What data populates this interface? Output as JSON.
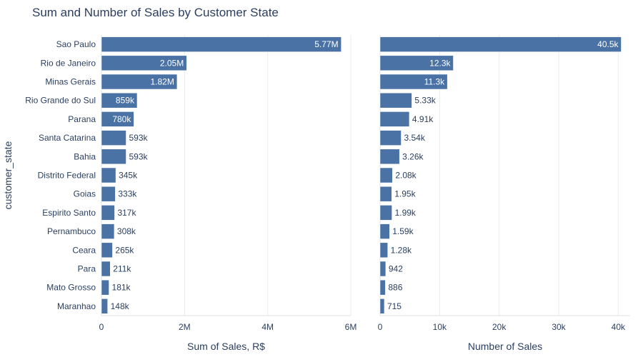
{
  "chart_data": {
    "type": "bar",
    "orientation": "horizontal",
    "title": "Sum and Number of Sales by Customer State",
    "ylabel": "customer_state",
    "bar_color": "#4a72a5",
    "grid_color": "#e8ebf0",
    "text_color": "#2a3f5f",
    "categories": [
      "Sao Paulo",
      "Rio de Janeiro",
      "Minas Gerais",
      "Rio Grande do Sul",
      "Parana",
      "Santa Catarina",
      "Bahia",
      "Distrito Federal",
      "Goias",
      "Espirito Santo",
      "Pernambuco",
      "Ceara",
      "Para",
      "Mato Grosso",
      "Maranhao"
    ],
    "panels": [
      {
        "name": "sum",
        "xlabel": "Sum of Sales, R$",
        "xlim": [
          0,
          6000000
        ],
        "ticks": [
          0,
          2000000,
          4000000,
          6000000
        ],
        "tick_labels": [
          "0",
          "2M",
          "4M",
          "6M"
        ],
        "values": [
          5770000,
          2050000,
          1820000,
          859000,
          780000,
          593000,
          593000,
          345000,
          333000,
          317000,
          308000,
          265000,
          211000,
          181000,
          148000
        ],
        "labels": [
          "5.77M",
          "2.05M",
          "1.82M",
          "859k",
          "780k",
          "593k",
          "593k",
          "345k",
          "333k",
          "317k",
          "308k",
          "265k",
          "211k",
          "181k",
          "148k"
        ]
      },
      {
        "name": "count",
        "xlabel": "Number of Sales",
        "xlim": [
          0,
          42000
        ],
        "ticks": [
          0,
          10000,
          20000,
          30000,
          40000
        ],
        "tick_labels": [
          "0",
          "10k",
          "20k",
          "30k",
          "40k"
        ],
        "values": [
          40500,
          12300,
          11300,
          5330,
          4910,
          3540,
          3260,
          2080,
          1950,
          1990,
          1590,
          1280,
          942,
          886,
          715
        ],
        "labels": [
          "40.5k",
          "12.3k",
          "11.3k",
          "5.33k",
          "4.91k",
          "3.54k",
          "3.26k",
          "2.08k",
          "1.95k",
          "1.99k",
          "1.59k",
          "1.28k",
          "942",
          "886",
          "715"
        ]
      }
    ]
  }
}
